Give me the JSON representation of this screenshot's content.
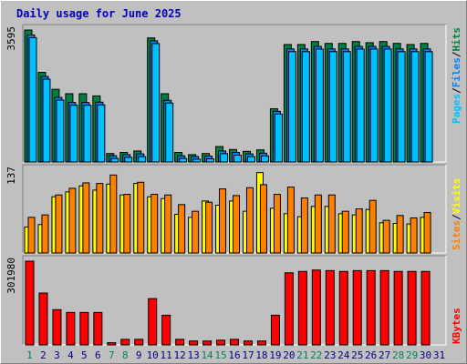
{
  "title": "Daily usage for June 2025",
  "colors": {
    "background": "#c0c0c0",
    "panel": "#c0c0c0",
    "title": "#0000c0",
    "hits": "#008040",
    "files": "#0080ff",
    "pages": "#00c0ff",
    "visits": "#ffff00",
    "sites": "#ff8000",
    "kbytes": "#ff0000",
    "weekend_day": "#00805c",
    "weekday": "#000080"
  },
  "side_labels": {
    "top": [
      "Pages",
      "Files",
      "Hits"
    ],
    "middle": [
      "Sites",
      "Visits"
    ],
    "bottom": [
      "KBytes"
    ],
    "separator": "/"
  },
  "chart_data": [
    {
      "type": "bar",
      "panel": "top",
      "ymax_label": "3595",
      "ylim": [
        0,
        3595
      ],
      "categories": [
        "1",
        "2",
        "3",
        "4",
        "5",
        "6",
        "7",
        "8",
        "9",
        "10",
        "11",
        "12",
        "13",
        "14",
        "15",
        "16",
        "17",
        "18",
        "19",
        "20",
        "21",
        "22",
        "23",
        "24",
        "25",
        "26",
        "27",
        "28",
        "29",
        "30",
        "31"
      ],
      "series": [
        {
          "name": "Hits",
          "values": [
            3595,
            2440,
            1980,
            1860,
            1860,
            1800,
            230,
            260,
            300,
            3380,
            1860,
            260,
            200,
            230,
            420,
            340,
            290,
            330,
            1450,
            3200,
            3200,
            3280,
            3230,
            3230,
            3280,
            3250,
            3280,
            3230,
            3200,
            3230,
            0
          ]
        },
        {
          "name": "Files",
          "values": [
            3460,
            2330,
            1760,
            1620,
            1620,
            1630,
            170,
            200,
            220,
            3300,
            1680,
            170,
            150,
            160,
            300,
            260,
            220,
            240,
            1380,
            3080,
            3080,
            3150,
            3080,
            3080,
            3150,
            3150,
            3150,
            3080,
            3080,
            3080,
            0
          ]
        },
        {
          "name": "Pages",
          "values": [
            3460,
            2330,
            1760,
            1620,
            1620,
            1630,
            170,
            200,
            220,
            3300,
            1680,
            170,
            150,
            160,
            300,
            260,
            220,
            240,
            1380,
            3080,
            3080,
            3150,
            3080,
            3080,
            3150,
            3150,
            3150,
            3080,
            3080,
            3080,
            0
          ]
        }
      ]
    },
    {
      "type": "bar",
      "panel": "middle",
      "ymax_label": "137",
      "ylim": [
        0,
        137
      ],
      "categories": [
        "1",
        "2",
        "3",
        "4",
        "5",
        "6",
        "7",
        "8",
        "9",
        "10",
        "11",
        "12",
        "13",
        "14",
        "15",
        "16",
        "17",
        "18",
        "19",
        "20",
        "21",
        "22",
        "23",
        "24",
        "25",
        "26",
        "27",
        "28",
        "29",
        "30",
        "31"
      ],
      "series": [
        {
          "name": "Visits",
          "values": [
            43,
            47,
            93,
            101,
            111,
            104,
            114,
            96,
            115,
            93,
            90,
            64,
            59,
            86,
            79,
            86,
            69,
            133,
            74,
            65,
            60,
            77,
            77,
            65,
            63,
            72,
            50,
            49,
            48,
            59,
            0
          ]
        },
        {
          "name": "Sites",
          "values": [
            59,
            63,
            96,
            107,
            116,
            115,
            129,
            97,
            117,
            97,
            96,
            80,
            69,
            84,
            106,
            95,
            108,
            113,
            97,
            109,
            91,
            96,
            96,
            69,
            73,
            87,
            54,
            62,
            58,
            67,
            0
          ]
        }
      ]
    },
    {
      "type": "bar",
      "panel": "bottom",
      "ymax_label": "301980",
      "ylim": [
        0,
        301980
      ],
      "categories": [
        "1",
        "2",
        "3",
        "4",
        "5",
        "6",
        "7",
        "8",
        "9",
        "10",
        "11",
        "12",
        "13",
        "14",
        "15",
        "16",
        "17",
        "18",
        "19",
        "20",
        "21",
        "22",
        "23",
        "24",
        "25",
        "26",
        "27",
        "28",
        "29",
        "30",
        "31"
      ],
      "series": [
        {
          "name": "KBytes",
          "values": [
            301980,
            187000,
            127000,
            117000,
            117000,
            117000,
            8000,
            20000,
            20000,
            167000,
            107000,
            20000,
            14000,
            14000,
            17000,
            20000,
            14000,
            14000,
            107000,
            260000,
            265000,
            270000,
            268000,
            265000,
            268000,
            268000,
            268000,
            265000,
            265000,
            265000,
            0
          ]
        }
      ]
    }
  ],
  "x_axis": {
    "labels": [
      "1",
      "2",
      "3",
      "4",
      "5",
      "6",
      "7",
      "8",
      "9",
      "10",
      "11",
      "12",
      "13",
      "14",
      "15",
      "16",
      "17",
      "18",
      "19",
      "20",
      "21",
      "22",
      "23",
      "24",
      "25",
      "26",
      "27",
      "28",
      "29",
      "30",
      "31"
    ],
    "weekend_days": [
      "1",
      "7",
      "8",
      "14",
      "15",
      "21",
      "22",
      "28",
      "29"
    ]
  }
}
